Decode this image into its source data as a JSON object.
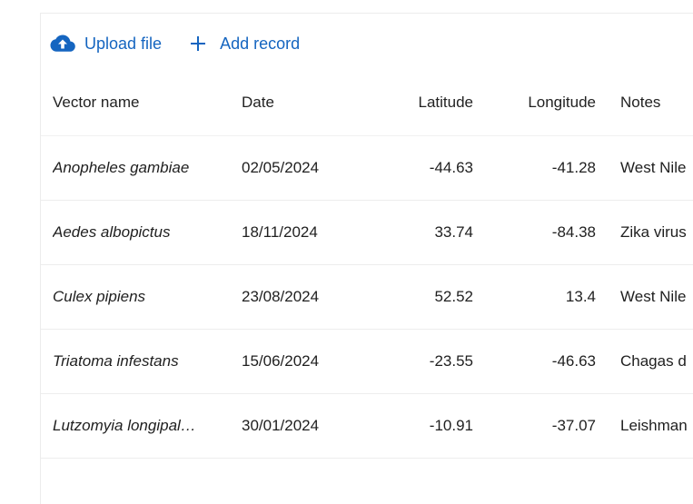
{
  "toolbar": {
    "upload_label": "Upload file",
    "add_label": "Add record"
  },
  "colors": {
    "accent": "#1565c0",
    "divider": "#ededed"
  },
  "table": {
    "headers": [
      "Vector name",
      "Date",
      "Latitude",
      "Longitude",
      "Notes"
    ],
    "rows": [
      {
        "name": "Anopheles gambiae",
        "date": "02/05/2024",
        "lat": "-44.63",
        "lon": "-41.28",
        "notes": "West Nile"
      },
      {
        "name": "Aedes albopictus",
        "date": "18/11/2024",
        "lat": "33.74",
        "lon": "-84.38",
        "notes": "Zika virus"
      },
      {
        "name": "Culex pipiens",
        "date": "23/08/2024",
        "lat": "52.52",
        "lon": "13.4",
        "notes": "West Nile"
      },
      {
        "name": "Triatoma infestans",
        "date": "15/06/2024",
        "lat": "-23.55",
        "lon": "-46.63",
        "notes": "Chagas d"
      },
      {
        "name": "Lutzomyia longipal…",
        "date": "30/01/2024",
        "lat": "-10.91",
        "lon": "-37.07",
        "notes": "Leishman"
      }
    ]
  }
}
